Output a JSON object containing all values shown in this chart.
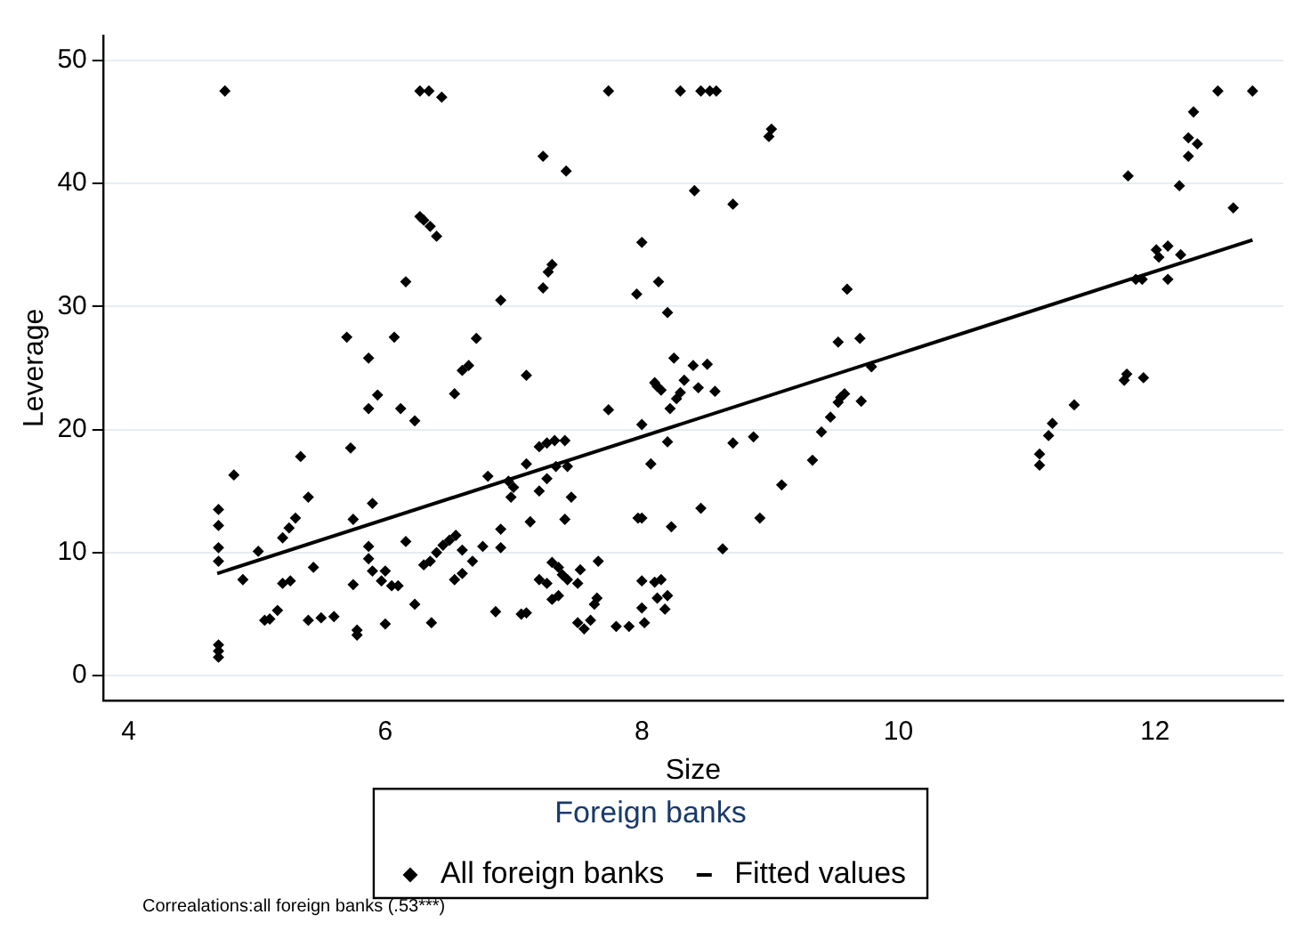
{
  "chart_data": {
    "type": "scatter",
    "xlabel": "Size",
    "ylabel": "Leverage",
    "legend_title": "Foreign banks",
    "legend": "bottom",
    "grid": "y",
    "xlim": [
      3.8,
      13
    ],
    "xticks": [
      4,
      6,
      8,
      10,
      12
    ],
    "ylim": [
      -2,
      52
    ],
    "yticks": [
      0,
      10,
      20,
      30,
      40,
      50
    ],
    "annotations": [
      "Correalations:all foreign banks (.53***)"
    ],
    "series": [
      {
        "name": "All foreign banks",
        "type": "scatter",
        "marker": "diamond",
        "color": "#000000",
        "x": [
          4.7,
          4.7,
          4.7,
          4.7,
          4.7,
          4.7,
          4.7,
          4.75,
          4.82,
          4.89,
          5.01,
          5.06,
          5.1,
          5.16,
          5.2,
          5.25,
          5.3,
          5.34,
          5.4,
          5.2,
          5.26,
          5.44,
          5.4,
          5.5,
          5.6,
          5.7,
          5.73,
          5.75,
          5.75,
          5.78,
          5.78,
          5.87,
          5.87,
          5.9,
          5.94,
          5.87,
          5.87,
          5.9,
          5.97,
          6.0,
          6.0,
          6.07,
          6.12,
          6.16,
          6.16,
          6.05,
          6.1,
          6.23,
          6.23,
          6.27,
          6.27,
          6.3,
          6.34,
          6.44,
          6.3,
          6.35,
          6.4,
          6.36,
          6.35,
          6.4,
          6.45,
          6.5,
          6.55,
          6.6,
          6.54,
          6.6,
          6.65,
          6.71,
          6.54,
          6.6,
          6.68,
          6.76,
          6.8,
          6.86,
          6.9,
          6.9,
          6.9,
          6.96,
          6.98,
          7.0,
          7.06,
          7.1,
          7.1,
          7.1,
          7.13,
          7.2,
          7.23,
          7.23,
          7.27,
          7.3,
          7.2,
          7.26,
          7.32,
          7.4,
          7.26,
          7.33,
          7.42,
          7.41,
          7.45,
          7.4,
          7.2,
          7.26,
          7.3,
          7.35,
          7.38,
          7.42,
          7.5,
          7.52,
          7.3,
          7.35,
          7.5,
          7.55,
          7.6,
          7.65,
          7.63,
          7.66,
          7.74,
          7.74,
          7.8,
          7.9,
          7.96,
          8.0,
          7.97,
          8.0,
          8.0,
          8.0,
          8.0,
          8.02,
          8.07,
          8.13,
          8.2,
          8.12,
          8.15,
          8.1,
          8.22,
          8.27,
          8.3,
          8.33,
          8.25,
          8.4,
          8.44,
          8.2,
          8.1,
          8.15,
          8.2,
          8.18,
          8.12,
          8.23,
          8.3,
          8.46,
          8.41,
          8.46,
          8.53,
          8.58,
          8.99,
          9.01,
          8.71,
          8.51,
          8.57,
          8.71,
          8.87,
          8.92,
          8.63,
          9.09,
          9.33,
          9.4,
          9.47,
          9.53,
          9.58,
          9.55,
          9.53,
          9.6,
          9.7,
          9.79,
          9.71,
          11.1,
          11.1,
          11.17,
          11.2,
          11.37,
          11.76,
          11.78,
          11.91,
          11.79,
          11.85,
          11.9,
          12.1,
          12.01,
          12.03,
          12.1,
          12.2,
          12.19,
          12.26,
          12.26,
          12.33,
          12.3,
          12.49,
          12.76,
          12.61
        ],
        "values": [
          1.5,
          2,
          2.5,
          9.3,
          10.4,
          12.2,
          13.5,
          47.5,
          16.3,
          7.8,
          10.1,
          4.5,
          4.6,
          5.3,
          11.2,
          12,
          12.8,
          17.8,
          14.5,
          7.5,
          7.7,
          8.8,
          4.5,
          4.7,
          4.8,
          27.5,
          18.5,
          12.7,
          7.4,
          3.3,
          3.7,
          25.8,
          21.7,
          14,
          22.8,
          9.5,
          10.5,
          8.5,
          7.7,
          8.5,
          4.2,
          27.5,
          21.7,
          10.9,
          32,
          7.3,
          7.3,
          5.8,
          20.7,
          47.5,
          37.3,
          9,
          47.5,
          47,
          37,
          36.5,
          35.7,
          4.3,
          9.3,
          10,
          10.6,
          11,
          11.4,
          10.2,
          22.9,
          24.8,
          25.2,
          27.4,
          7.8,
          8.3,
          9.3,
          10.5,
          16.2,
          5.2,
          30.5,
          11.9,
          10.4,
          15.8,
          14.5,
          15.3,
          5,
          5.1,
          24.4,
          17.2,
          12.5,
          15,
          42.2,
          31.5,
          32.8,
          33.4,
          18.6,
          18.9,
          19.1,
          19.1,
          16,
          17,
          17,
          41,
          14.5,
          12.7,
          7.8,
          7.5,
          9.2,
          8.8,
          8.2,
          7.8,
          7.5,
          8.6,
          6.2,
          6.5,
          4.3,
          3.8,
          4.5,
          6.3,
          5.8,
          9.3,
          47.5,
          21.6,
          4,
          4,
          31,
          35.2,
          12.8,
          12.8,
          20.4,
          7.7,
          5.5,
          4.3,
          17.2,
          32,
          29.5,
          23.5,
          23.2,
          23.8,
          21.7,
          22.5,
          23,
          24,
          25.8,
          25.2,
          23.4,
          19,
          7.6,
          7.8,
          6.5,
          5.4,
          6.3,
          12.1,
          47.5,
          47.5,
          39.4,
          13.6,
          47.5,
          47.5,
          43.8,
          44.4,
          38.3,
          25.3,
          23.1,
          18.9,
          19.4,
          12.8,
          10.3,
          15.5,
          17.5,
          19.8,
          21,
          22.2,
          22.9,
          22.6,
          27.1,
          31.4,
          27.4,
          25.1,
          22.3,
          17.1,
          18,
          19.5,
          20.5,
          22,
          24,
          24.5,
          24.2,
          40.6,
          32.2,
          32.2,
          32.2,
          34.6,
          34,
          34.9,
          34.2,
          39.8,
          42.2,
          43.7,
          43.2,
          45.8,
          47.5,
          47.5,
          38
        ]
      },
      {
        "name": "Fitted values",
        "type": "line",
        "marker": "none",
        "color": "#000000",
        "x": [
          4.69,
          12.76
        ],
        "values": [
          8.3,
          35.4
        ]
      }
    ]
  }
}
